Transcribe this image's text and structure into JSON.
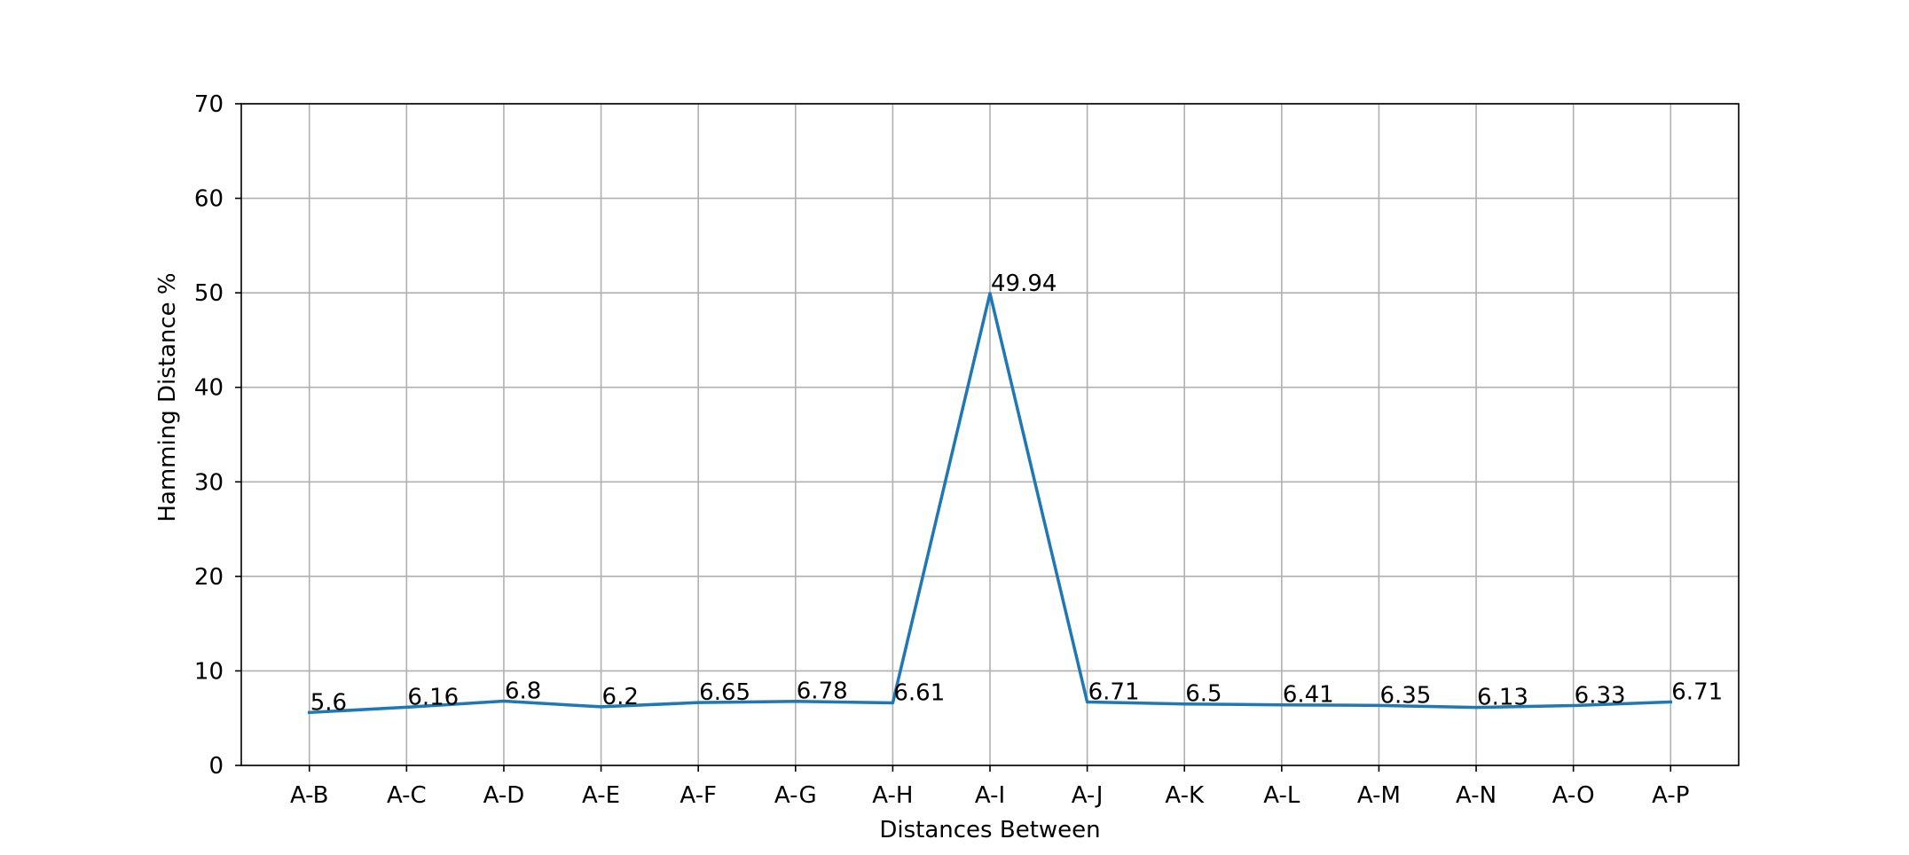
{
  "chart_data": {
    "type": "line",
    "xlabel": "Distances Between",
    "ylabel": "Hamming Distance %",
    "categories": [
      "A-B",
      "A-C",
      "A-D",
      "A-E",
      "A-F",
      "A-G",
      "A-H",
      "A-I",
      "A-J",
      "A-K",
      "A-L",
      "A-M",
      "A-N",
      "A-O",
      "A-P"
    ],
    "series": [
      {
        "values": [
          5.6,
          6.16,
          6.8,
          6.2,
          6.65,
          6.78,
          6.61,
          49.94,
          6.71,
          6.5,
          6.41,
          6.35,
          6.13,
          6.33,
          6.71
        ],
        "color": "#1f77b4"
      }
    ],
    "data_labels": [
      "5.6",
      "6.16",
      "6.8",
      "6.2",
      "6.65",
      "6.78",
      "6.61",
      "49.94",
      "6.71",
      "6.5",
      "6.41",
      "6.35",
      "6.13",
      "6.33",
      "6.71"
    ],
    "ylim": [
      0,
      70
    ],
    "yticks": [
      0,
      10,
      20,
      30,
      40,
      50,
      60,
      70
    ],
    "grid": true,
    "legend": false
  }
}
